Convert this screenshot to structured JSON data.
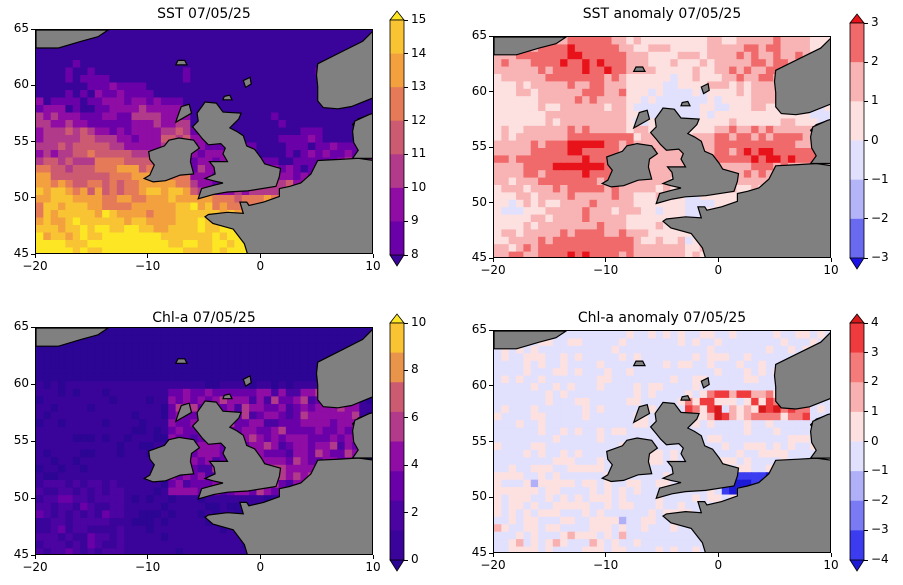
{
  "panels": [
    {
      "id": "sst",
      "title": "SST 07/05/25",
      "xticks": [
        "−20",
        "−10",
        "0",
        "10"
      ],
      "yticks": [
        "65",
        "60",
        "55",
        "50",
        "45"
      ],
      "colorbar": {
        "ticks": [
          "15",
          "14",
          "13",
          "12",
          "11",
          "10",
          "9",
          "8"
        ],
        "colors": [
          "#fde725",
          "#f8c433",
          "#f3a03f",
          "#e47a58",
          "#cc5a71",
          "#b13a8a",
          "#8f0da4",
          "#6a00a8",
          "#3a049a"
        ],
        "extend": "both"
      }
    },
    {
      "id": "sst-anomaly",
      "title": "SST anomaly 07/05/25",
      "xticks": [
        "−20",
        "−10",
        "0",
        "10"
      ],
      "yticks": [
        "65",
        "60",
        "55",
        "50",
        "45"
      ],
      "colorbar": {
        "ticks": [
          "3",
          "2",
          "1",
          "0",
          "−1",
          "−2",
          "−3"
        ],
        "colors": [
          "#e8121b",
          "#f06a6c",
          "#f8b4b4",
          "#fde1e1",
          "#e1e1fd",
          "#b4b4f8",
          "#6a6af0",
          "#1b12e8"
        ],
        "extend": "both"
      }
    },
    {
      "id": "chla",
      "title": "Chl-a 07/05/25",
      "xticks": [
        "−20",
        "−10",
        "0",
        "10"
      ],
      "yticks": [
        "65",
        "60",
        "55",
        "50",
        "45"
      ],
      "colorbar": {
        "ticks": [
          "10",
          "8",
          "6",
          "4",
          "2",
          "0"
        ],
        "colors": [
          "#fde725",
          "#f8c433",
          "#e8944a",
          "#cc5a71",
          "#b13a8a",
          "#8f0da4",
          "#6a00a8",
          "#4b03a1",
          "#3a049a",
          "#2c0594"
        ],
        "extend": "both"
      }
    },
    {
      "id": "chla-anomaly",
      "title": "Chl-a anomaly 07/05/25",
      "xticks": [
        "−20",
        "−10",
        "0",
        "10"
      ],
      "yticks": [
        "65",
        "60",
        "55",
        "50",
        "45"
      ],
      "colorbar": {
        "ticks": [
          "4",
          "3",
          "2",
          "1",
          "0",
          "−1",
          "−2",
          "−3",
          "−4"
        ],
        "colors": [
          "#d7191c",
          "#ef3b3e",
          "#f57a7a",
          "#f9b0b0",
          "#fde1e1",
          "#e1e1fd",
          "#b0b0f9",
          "#7a7af5",
          "#3b3bef",
          "#1c19d7"
        ],
        "extend": "both"
      }
    }
  ],
  "land_color": "#808080",
  "map_extent": {
    "lon": [
      -20,
      10
    ],
    "lat": [
      45,
      65
    ]
  }
}
